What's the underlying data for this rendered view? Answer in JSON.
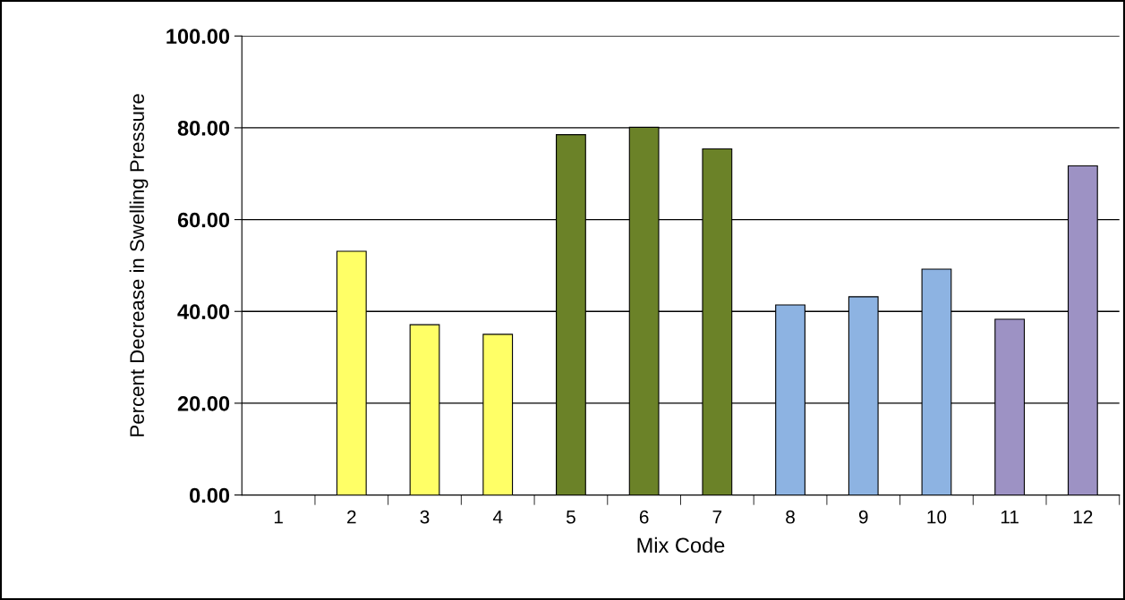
{
  "chart_data": {
    "type": "bar",
    "xlabel": "Mix Code",
    "ylabel": "Percent Decrease in Swelling Pressure",
    "categories": [
      "1",
      "2",
      "3",
      "4",
      "5",
      "6",
      "7",
      "8",
      "9",
      "10",
      "11",
      "12"
    ],
    "values": [
      null,
      53.1,
      37.1,
      35.0,
      78.5,
      80.1,
      75.4,
      41.4,
      43.2,
      49.2,
      38.3,
      71.7
    ],
    "colors": [
      null,
      "#ffff66",
      "#ffff66",
      "#ffff66",
      "#6b8228",
      "#6b8228",
      "#6b8228",
      "#8db3e2",
      "#8db3e2",
      "#8db3e2",
      "#9d92c4",
      "#9d92c4"
    ],
    "ylim": [
      0,
      100
    ],
    "yticks": [
      {
        "value": 0,
        "label": "0.00"
      },
      {
        "value": 20,
        "label": "20.00"
      },
      {
        "value": 40,
        "label": "40.00"
      },
      {
        "value": 60,
        "label": "60.00"
      },
      {
        "value": 80,
        "label": "80.00"
      },
      {
        "value": 100,
        "label": "100.00"
      }
    ],
    "grid": "y",
    "legend": false
  }
}
